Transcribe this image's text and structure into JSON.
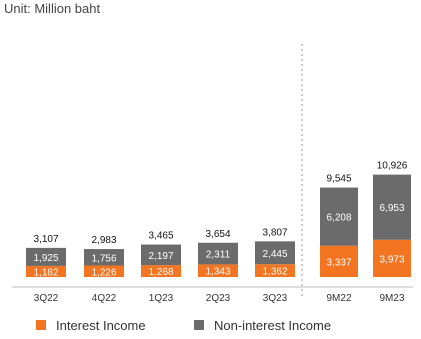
{
  "chart_data": {
    "type": "bar",
    "stacked": true,
    "unit_label": "Unit: Million baht",
    "categories": [
      "3Q22",
      "4Q22",
      "1Q23",
      "2Q23",
      "3Q23",
      "9M22",
      "9M23"
    ],
    "series": [
      {
        "name": "Interest Income",
        "color": "#f47521",
        "values": [
          1182,
          1226,
          1268,
          1343,
          1362,
          3337,
          3973
        ]
      },
      {
        "name": "Non-interest Income",
        "color": "#6b6b6b",
        "values": [
          1925,
          1756,
          2197,
          2311,
          2445,
          6208,
          6953
        ]
      }
    ],
    "value_labels": {
      "series": [
        [
          "1,182",
          "1,226",
          "1,268",
          "1,343",
          "1,362",
          "3,337",
          "3,973"
        ],
        [
          "1,925",
          "1,756",
          "2,197",
          "2,311",
          "2,445",
          "6,208",
          "6,953"
        ]
      ],
      "totals": [
        "3,107",
        "2,983",
        "3,465",
        "3,654",
        "3,807",
        "9,545",
        "10,926"
      ]
    },
    "totals": [
      3107,
      2983,
      3465,
      3654,
      3807,
      9545,
      10926
    ],
    "legend_position": "bottom-left",
    "grid": false,
    "separator_between": [
      "3Q23",
      "9M22"
    ],
    "ylim": [
      0,
      12000
    ]
  }
}
